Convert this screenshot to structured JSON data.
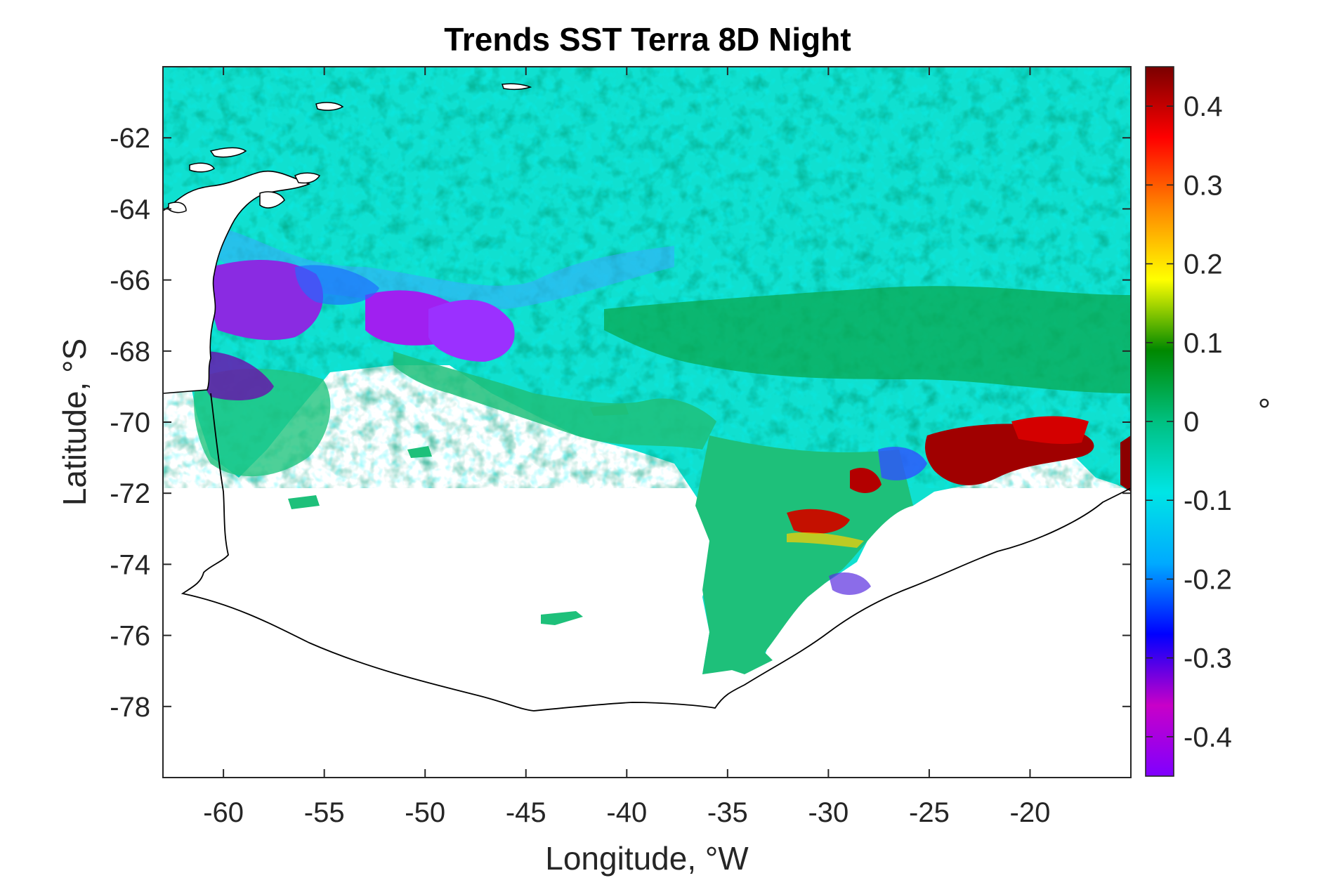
{
  "chart_data": {
    "type": "heatmap",
    "title": "Trends SST Terra 8D Night",
    "xlabel": "Longitude, °W",
    "ylabel": "Latitude, °S",
    "xlim": [
      -63,
      -15
    ],
    "ylim": [
      -80,
      -60
    ],
    "x_ticks": [
      -60,
      -55,
      -50,
      -45,
      -40,
      -35,
      -30,
      -25,
      -20
    ],
    "y_ticks": [
      -62,
      -64,
      -66,
      -68,
      -70,
      -72,
      -74,
      -76,
      -78
    ],
    "colorbar": {
      "unit": "°",
      "range": [
        -0.45,
        0.45
      ],
      "ticks": [
        0.4,
        0.3,
        0.2,
        0.1,
        0,
        -0.1,
        -0.2,
        -0.3,
        -0.4
      ],
      "colormap": [
        "#7f00ff",
        "#c800c8",
        "#0000ff",
        "#00aaff",
        "#00e5e5",
        "#00c080",
        "#008800",
        "#ffff00",
        "#ff8800",
        "#ff0000",
        "#7a0000"
      ]
    },
    "regions": [
      {
        "description": "open ocean north",
        "trend": "approximately -0.05 to 0.05"
      },
      {
        "description": "western negative patch near -66 to -70°",
        "trend": "approximately -0.3 to -0.4"
      },
      {
        "description": "eastern positive patch near -70 to -72°",
        "trend": "approximately 0.4 to 0.45"
      },
      {
        "description": "ice covered",
        "trend": "no data"
      }
    ]
  }
}
